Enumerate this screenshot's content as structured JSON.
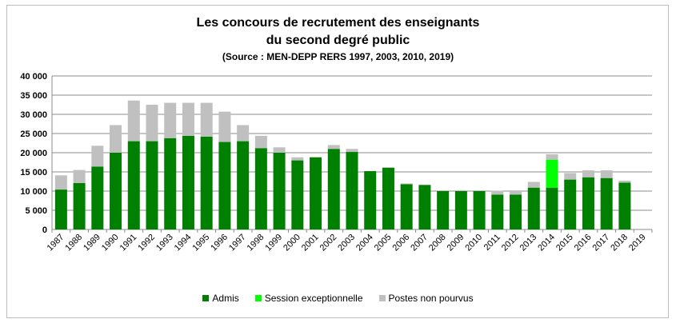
{
  "chart_data": {
    "type": "bar",
    "stacked": true,
    "title": "Les concours de recrutement des enseignants",
    "title_line2": "du second degré public",
    "subtitle": "(Source : MEN-DEPP RERS 1997, 2003, 2010, 2019)",
    "xlabel": "",
    "ylabel": "",
    "ylim": [
      0,
      40000
    ],
    "yticks": [
      "0",
      "5 000",
      "10 000",
      "15 000",
      "20 000",
      "25 000",
      "30 000",
      "35 000",
      "40 000"
    ],
    "grid": true,
    "legend_position": "bottom",
    "categories": [
      "1987",
      "1988",
      "1989",
      "1990",
      "1991",
      "1992",
      "1993",
      "1994",
      "1995",
      "1996",
      "1997",
      "1998",
      "1999",
      "2000",
      "2001",
      "2002",
      "2003",
      "2004",
      "2005",
      "2006",
      "2007",
      "2008",
      "2009",
      "2010",
      "2011",
      "2012",
      "2013",
      "2014",
      "2015",
      "2016",
      "2017",
      "2018",
      "2019"
    ],
    "series": [
      {
        "name": "Admis",
        "color": "#008000",
        "values": [
          10400,
          12100,
          16400,
          20000,
          23000,
          23000,
          23800,
          24400,
          24200,
          22800,
          23000,
          21200,
          20000,
          18000,
          18800,
          21000,
          20200,
          15200,
          16100,
          11800,
          11600,
          10000,
          10000,
          10000,
          9100,
          9100,
          10900,
          10900,
          13000,
          13600,
          13400,
          12200,
          0
        ]
      },
      {
        "name": "Session exceptionnelle",
        "color": "#00ff00",
        "values": [
          0,
          0,
          0,
          0,
          0,
          0,
          0,
          0,
          0,
          0,
          0,
          0,
          0,
          0,
          0,
          0,
          0,
          0,
          0,
          0,
          0,
          0,
          0,
          0,
          0,
          0,
          0,
          7300,
          0,
          0,
          0,
          0,
          0
        ]
      },
      {
        "name": "Postes non pourvus",
        "color": "#c0c0c0",
        "values": [
          3700,
          3400,
          5400,
          7200,
          10600,
          9500,
          9200,
          8600,
          8800,
          7900,
          4200,
          3200,
          1400,
          800,
          100,
          1000,
          800,
          0,
          100,
          200,
          100,
          0,
          0,
          0,
          1000,
          900,
          1500,
          1400,
          1700,
          1800,
          2000,
          500,
          0
        ]
      }
    ]
  }
}
